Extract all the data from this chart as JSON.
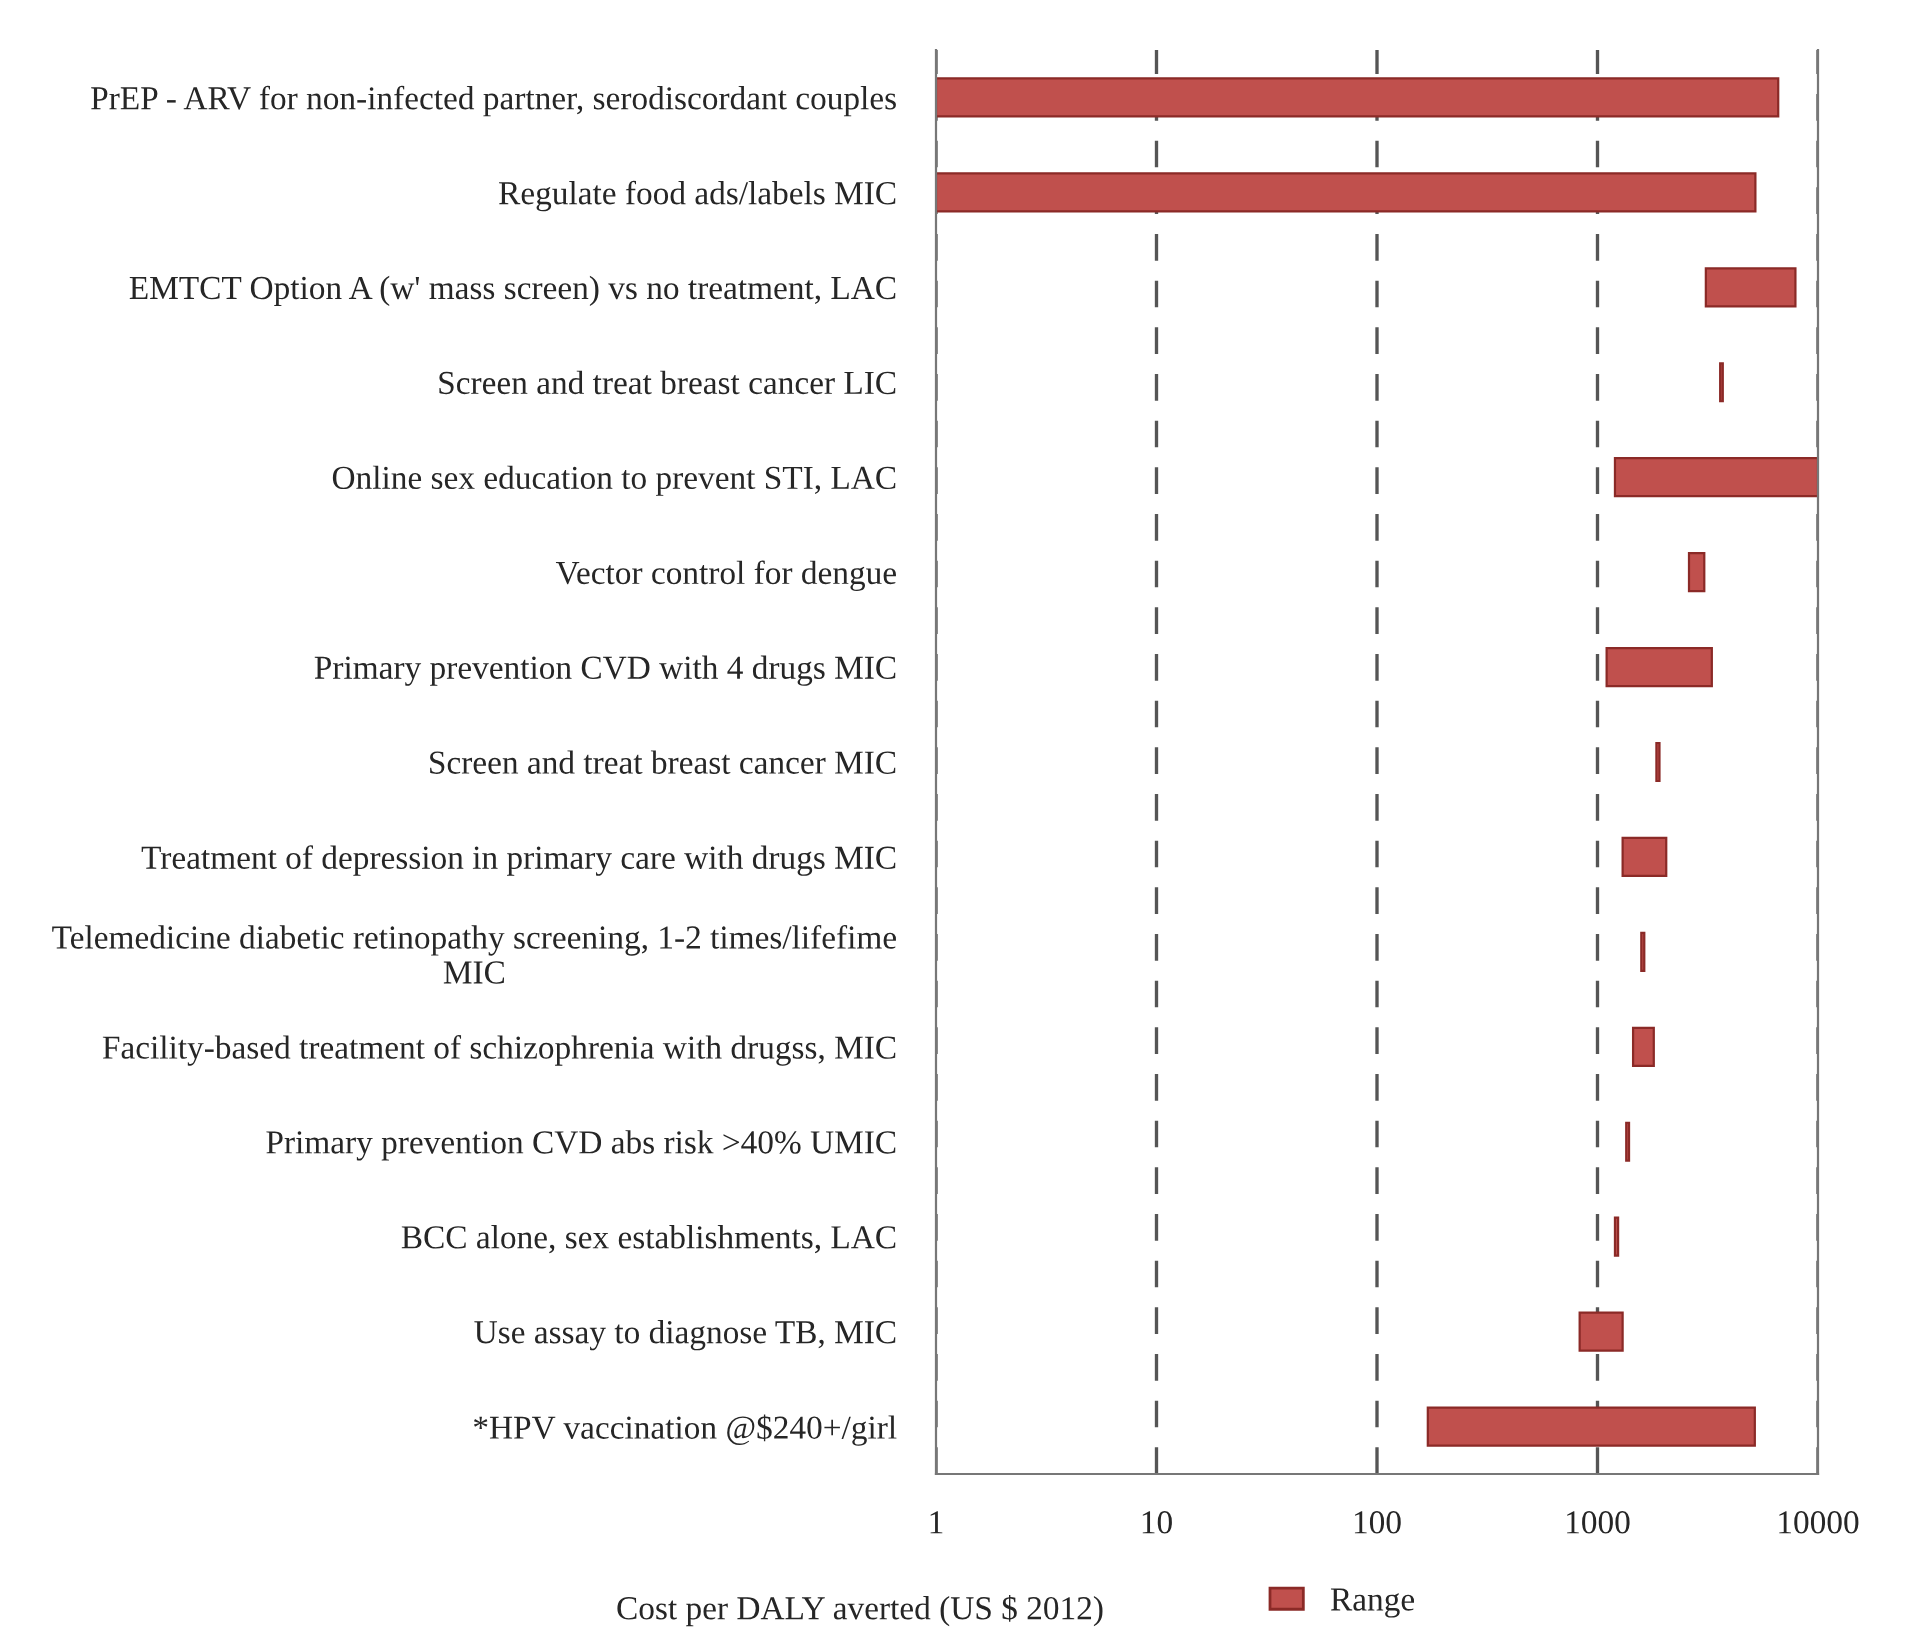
{
  "chart_data": {
    "type": "bar",
    "orientation": "horizontal",
    "log": "x",
    "categories": [
      "PrEP - ARV for non-infected partner, serodiscordant couples",
      "Regulate food ads/labels MIC",
      "EMTCT Option A (w' mass screen) vs no treatment, LAC",
      "Screen and treat breast cancer LIC",
      "Online sex education to prevent STI, LAC",
      "Vector control for dengue",
      "Primary prevention CVD with 4 drugs MIC",
      "Screen and treat breast cancer MIC",
      "Treatment of depression in primary care with drugs MIC",
      "Telemedicine diabetic retinopathy screening, 1-2 times/lifefime MIC",
      "Facility-based treatment of schizophrenia with drugss, MIC",
      "Primary prevention CVD abs risk >40% UMIC",
      "BCC alone, sex establishments, LAC",
      "Use assay to diagnose TB, MIC",
      "*HPV vaccination @$240+/girl"
    ],
    "series": [
      {
        "name": "Range",
        "color": "#c0504d",
        "base": [
          1,
          1,
          3100,
          3600,
          1200,
          2600,
          1100,
          1850,
          1300,
          1580,
          1450,
          1350,
          1200,
          830,
          170
        ],
        "values": [
          6600,
          5200,
          4800,
          100,
          8800,
          450,
          2200,
          60,
          750,
          50,
          350,
          40,
          40,
          470,
          5000
        ]
      }
    ],
    "xlim": [
      1,
      10000
    ],
    "xticks": [
      1,
      10,
      100,
      1000,
      10000
    ],
    "xlabel": "Cost per DALY averted (US $ 2012)",
    "grid": "x",
    "legend": "bottom"
  }
}
